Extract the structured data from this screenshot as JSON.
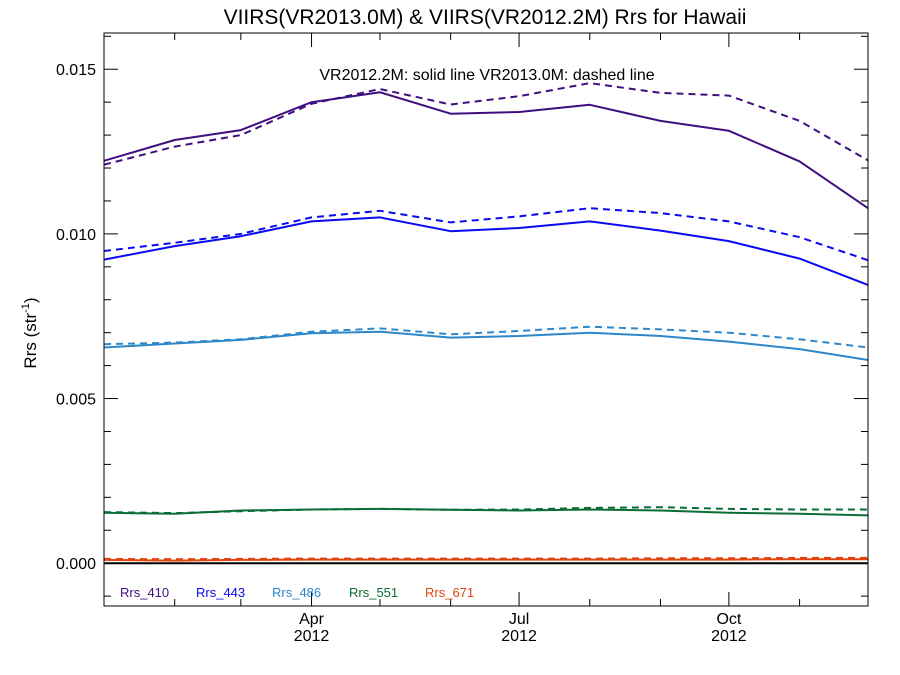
{
  "chart_data": {
    "type": "line",
    "title": "VIIRS(VR2013.0M) & VIIRS(VR2012.2M)  Rrs for Hawaii",
    "ylabel": "Rrs (str",
    "ylabel_sup": "-1",
    "ylabel_close": ")",
    "annotation": "VR2012.2M: solid line   VR2013.0M: dashed line",
    "ylim": [
      -0.0013,
      0.0161
    ],
    "yticks": [
      0.0,
      0.005,
      0.01,
      0.015
    ],
    "ytick_labels": [
      "0.000",
      "0.005",
      "0.010",
      "0.015"
    ],
    "x": [
      "2012-01-01",
      "2012-02-01",
      "2012-03-01",
      "2012-04-01",
      "2012-05-01",
      "2012-06-01",
      "2012-07-01",
      "2012-08-01",
      "2012-09-01",
      "2012-10-01",
      "2012-11-01",
      "2012-12-01"
    ],
    "xlim": [
      "2012-01-01",
      "2012-12-01"
    ],
    "xticks": [
      {
        "date": "2012-04-01",
        "label": "Apr",
        "label2": "2012"
      },
      {
        "date": "2012-07-01",
        "label": "Jul",
        "label2": "2012"
      },
      {
        "date": "2012-10-01",
        "label": "Oct",
        "label2": "2012"
      }
    ],
    "series": [
      {
        "name": "Rrs_410",
        "color": "#3f0f7f",
        "solid": [
          0.01222,
          0.01285,
          0.01315,
          0.014,
          0.0143,
          0.01365,
          0.0137,
          0.01392,
          0.01343,
          0.01313,
          0.0122,
          0.01078
        ],
        "dashed": [
          0.0121,
          0.01265,
          0.013,
          0.01395,
          0.0144,
          0.01393,
          0.01418,
          0.01458,
          0.01428,
          0.0142,
          0.01343,
          0.01223
        ]
      },
      {
        "name": "Rrs_443",
        "color": "#0a0af0",
        "solid": [
          0.00922,
          0.00963,
          0.00993,
          0.01038,
          0.0105,
          0.01008,
          0.01018,
          0.01038,
          0.0101,
          0.00978,
          0.00925,
          0.00845
        ],
        "dashed": [
          0.00948,
          0.00973,
          0.01,
          0.0105,
          0.0107,
          0.01035,
          0.01053,
          0.01078,
          0.01063,
          0.01038,
          0.0099,
          0.0092
        ]
      },
      {
        "name": "Rrs_486",
        "color": "#2e87c9",
        "solid": [
          0.00655,
          0.00667,
          0.00678,
          0.00698,
          0.00703,
          0.00685,
          0.0069,
          0.007,
          0.0069,
          0.00673,
          0.0065,
          0.00617
        ],
        "dashed": [
          0.00665,
          0.0067,
          0.0068,
          0.00703,
          0.00713,
          0.00695,
          0.00705,
          0.00718,
          0.0071,
          0.007,
          0.0068,
          0.00655
        ]
      },
      {
        "name": "Rrs_551",
        "color": "#0b6d36",
        "solid": [
          0.00153,
          0.0015,
          0.0016,
          0.00163,
          0.00165,
          0.00162,
          0.0016,
          0.00163,
          0.0016,
          0.00153,
          0.0015,
          0.00145
        ],
        "dashed": [
          0.00155,
          0.00152,
          0.00158,
          0.00163,
          0.00165,
          0.00162,
          0.00163,
          0.00168,
          0.0017,
          0.00165,
          0.00163,
          0.00163
        ]
      },
      {
        "name": "Rrs_671",
        "color": "#e0450f",
        "solid": [
          0.0001,
          8e-05,
          0.0001,
          0.00011,
          0.00011,
          0.00011,
          0.00011,
          0.00011,
          0.00011,
          0.00011,
          0.00012,
          0.00012
        ],
        "dashed": [
          0.00013,
          0.00012,
          0.00013,
          0.00014,
          0.00014,
          0.00014,
          0.00014,
          0.00014,
          0.00015,
          0.00015,
          0.00016,
          0.00016
        ]
      }
    ],
    "zero_line": true,
    "grid": false,
    "legend_placement": "bottom-left"
  }
}
